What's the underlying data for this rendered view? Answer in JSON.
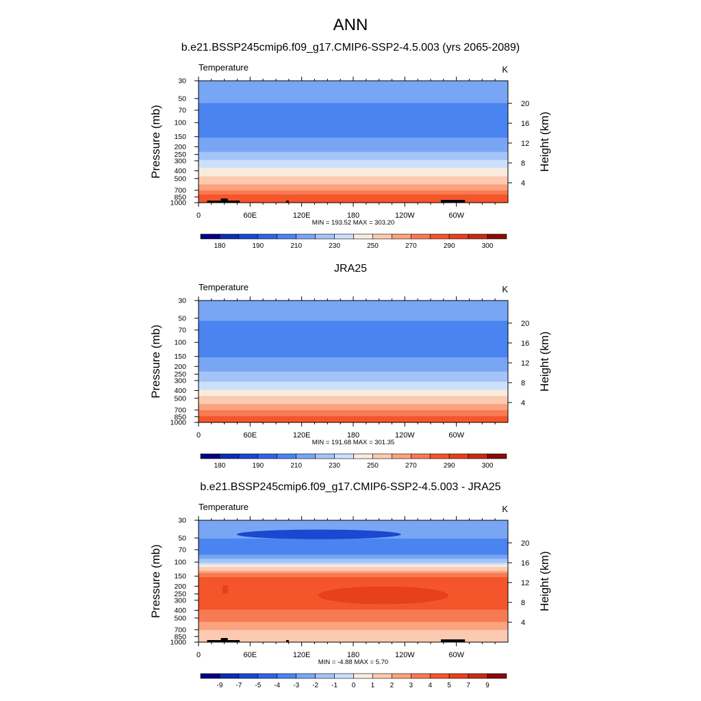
{
  "page": {
    "main_title": "ANN"
  },
  "colors": {
    "abs_levels": [
      "#000080",
      "#0a2db4",
      "#1b48d0",
      "#2e64e8",
      "#4a84f0",
      "#78a6f4",
      "#a4c4f8",
      "#cce0fc",
      "#faecdc",
      "#fccab0",
      "#fba27e",
      "#f87a52",
      "#f5552a",
      "#e6401c",
      "#c42c14",
      "#8a0a06"
    ],
    "diff_levels": [
      "#000080",
      "#0a2db4",
      "#1b48d0",
      "#2e64e8",
      "#4a84f0",
      "#78a6f4",
      "#a4c4f8",
      "#cce0fc",
      "#faecdc",
      "#fccab0",
      "#fba27e",
      "#f87a52",
      "#f5552a",
      "#e6401c",
      "#c42c14",
      "#8a0a06"
    ],
    "land_mask": "#000000"
  },
  "chart_data": [
    {
      "type": "heatmap",
      "title": "b.e21.BSSP245cmip6.f09_g17.CMIP6-SSP2-4.5.003 (yrs 2065-2089)",
      "variable": "Temperature",
      "units": "K",
      "xlabel": "",
      "ylabel": "Pressure (mb)",
      "y2label": "Height (km)",
      "x_ticks": [
        "0",
        "60E",
        "120E",
        "180",
        "120W",
        "60W"
      ],
      "x_tick_values": [
        0,
        60,
        120,
        180,
        240,
        300
      ],
      "xlim": [
        0,
        360
      ],
      "y_ticks": [
        "30",
        "50",
        "70",
        "100",
        "150",
        "200",
        "250",
        "300",
        "400",
        "500",
        "700",
        "850",
        "1000"
      ],
      "y_tick_values": [
        30,
        50,
        70,
        100,
        150,
        200,
        250,
        300,
        400,
        500,
        700,
        850,
        1000
      ],
      "ylim": [
        30,
        1000
      ],
      "y2_ticks": [
        "20",
        "16",
        "12",
        "8",
        "4"
      ],
      "y2_tick_values": [
        20,
        16,
        12,
        8,
        4
      ],
      "stats_label": "MIN = 193.52  MAX = 303.20",
      "min": 193.52,
      "max": 303.2,
      "colorbar_labels": [
        "180",
        "190",
        "210",
        "230",
        "250",
        "270",
        "290",
        "300"
      ],
      "profile_levels": [
        30,
        50,
        70,
        100,
        150,
        200,
        250,
        300,
        400,
        500,
        700,
        850,
        1000
      ],
      "profile_values": [
        218,
        212,
        207,
        206,
        210,
        216,
        223,
        230,
        243,
        253,
        270,
        283,
        290
      ]
    },
    {
      "type": "heatmap",
      "title": "JRA25",
      "variable": "Temperature",
      "units": "K",
      "xlabel": "",
      "ylabel": "Pressure (mb)",
      "y2label": "Height (km)",
      "x_ticks": [
        "0",
        "60E",
        "120E",
        "180",
        "120W",
        "60W"
      ],
      "x_tick_values": [
        0,
        60,
        120,
        180,
        240,
        300
      ],
      "xlim": [
        0,
        360
      ],
      "y_ticks": [
        "30",
        "50",
        "70",
        "100",
        "150",
        "200",
        "250",
        "300",
        "400",
        "500",
        "700",
        "850",
        "1000"
      ],
      "y_tick_values": [
        30,
        50,
        70,
        100,
        150,
        200,
        250,
        300,
        400,
        500,
        700,
        850,
        1000
      ],
      "ylim": [
        30,
        1000
      ],
      "y2_ticks": [
        "20",
        "16",
        "12",
        "8",
        "4"
      ],
      "y2_tick_values": [
        20,
        16,
        12,
        8,
        4
      ],
      "stats_label": "MIN = 191.68  MAX = 301.35",
      "min": 191.68,
      "max": 301.35,
      "colorbar_labels": [
        "180",
        "190",
        "210",
        "230",
        "250",
        "270",
        "290",
        "300"
      ],
      "profile_levels": [
        30,
        50,
        70,
        100,
        150,
        200,
        250,
        300,
        400,
        500,
        700,
        850,
        1000
      ],
      "profile_values": [
        217,
        211,
        206,
        205,
        209,
        215,
        222,
        229,
        242,
        252,
        269,
        281,
        289
      ]
    },
    {
      "type": "heatmap",
      "title": "b.e21.BSSP245cmip6.f09_g17.CMIP6-SSP2-4.5.003 - JRA25",
      "variable": "Temperature",
      "units": "K",
      "xlabel": "",
      "ylabel": "Pressure (mb)",
      "y2label": "Height (km)",
      "x_ticks": [
        "0",
        "60E",
        "120E",
        "180",
        "120W",
        "60W"
      ],
      "x_tick_values": [
        0,
        60,
        120,
        180,
        240,
        300
      ],
      "xlim": [
        0,
        360
      ],
      "y_ticks": [
        "30",
        "50",
        "70",
        "100",
        "150",
        "200",
        "250",
        "300",
        "400",
        "500",
        "700",
        "850",
        "1000"
      ],
      "y_tick_values": [
        30,
        50,
        70,
        100,
        150,
        200,
        250,
        300,
        400,
        500,
        700,
        850,
        1000
      ],
      "ylim": [
        30,
        1000
      ],
      "y2_ticks": [
        "20",
        "16",
        "12",
        "8",
        "4"
      ],
      "y2_tick_values": [
        20,
        16,
        12,
        8,
        4
      ],
      "stats_label": "MIN =  -4.88  MAX =   5.70",
      "min": -4.88,
      "max": 5.7,
      "colorbar_labels": [
        "-9",
        "-7",
        "-5",
        "-4",
        "-3",
        "-2",
        "-1",
        "0",
        "1",
        "2",
        "3",
        "4",
        "5",
        "7",
        "9"
      ],
      "profile_levels": [
        30,
        50,
        70,
        100,
        150,
        200,
        250,
        300,
        400,
        500,
        700,
        850,
        1000
      ],
      "profile_values": [
        -2,
        -3,
        -4,
        -1,
        4,
        4.5,
        4.5,
        4.5,
        4,
        3.5,
        2,
        1,
        1.5
      ]
    }
  ]
}
